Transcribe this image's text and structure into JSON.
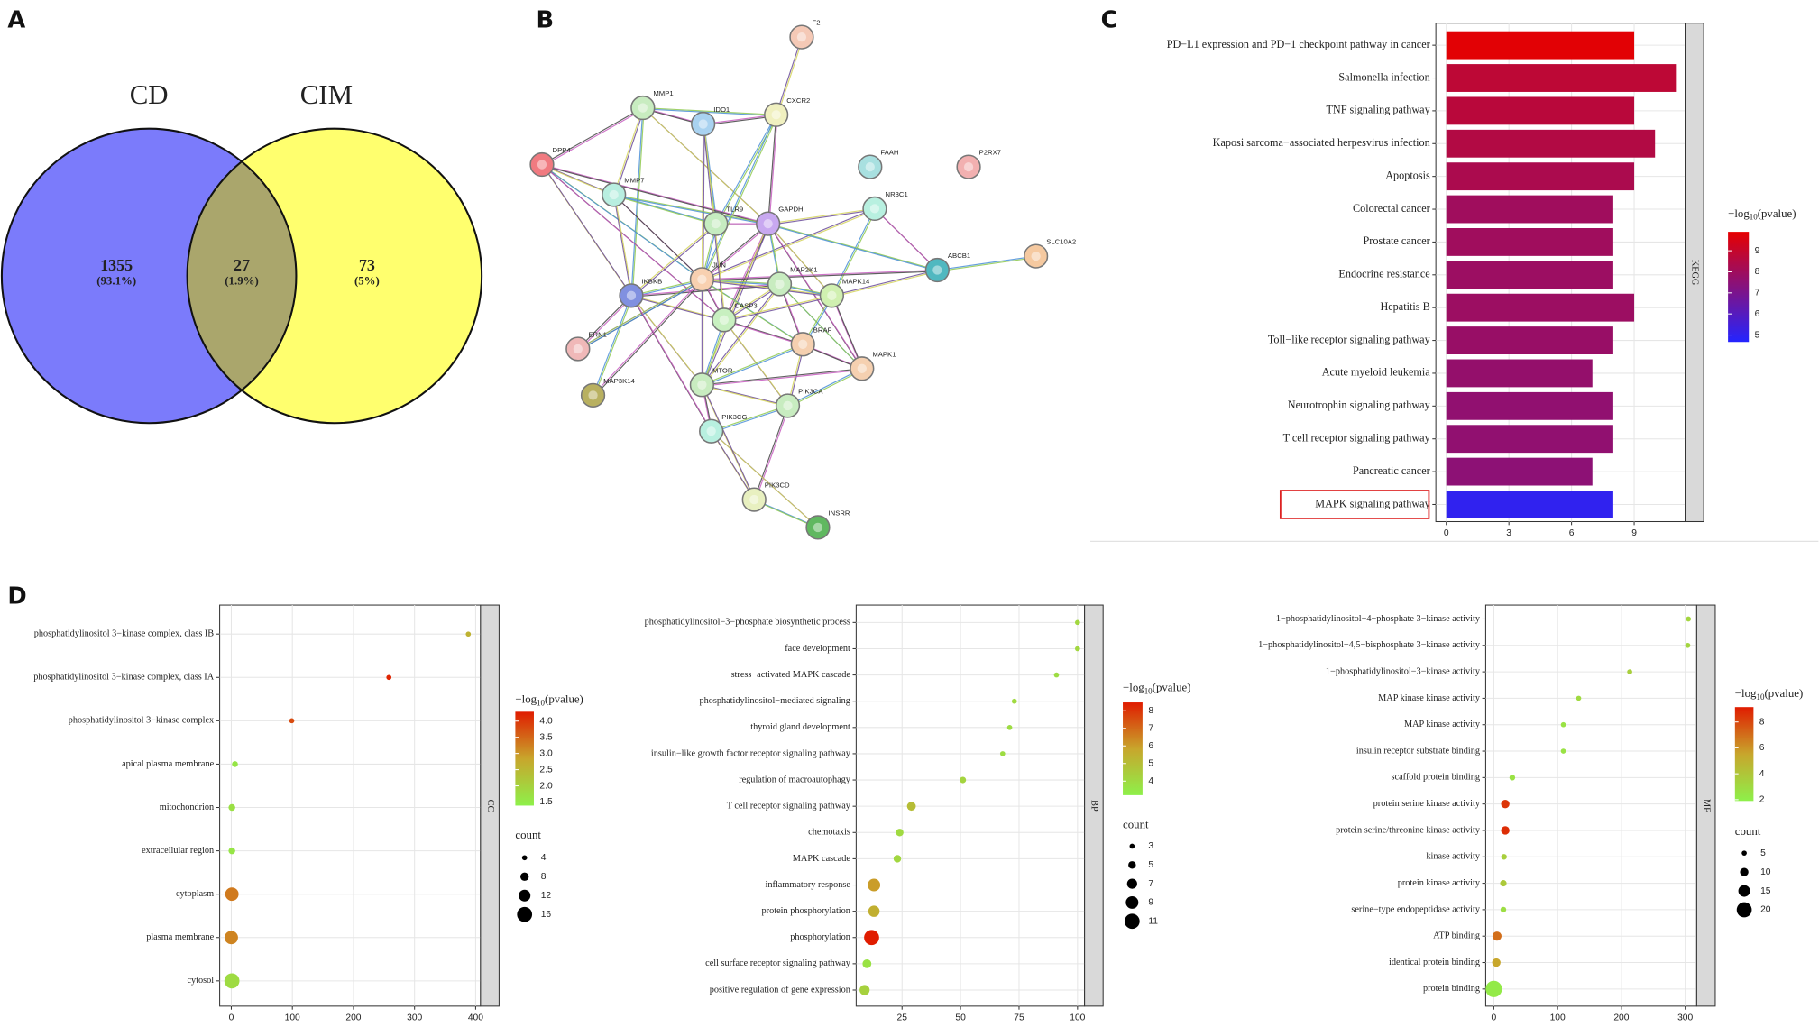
{
  "panel_labels": [
    "A",
    "B",
    "C",
    "D"
  ],
  "chart_data": [
    {
      "type": "venn",
      "sets": [
        {
          "name": "CD",
          "color": "#7b7bfb"
        },
        {
          "name": "CIM",
          "color": "#ffff6e"
        }
      ],
      "overlap_color": "#aaa66c",
      "values": [
        1355,
        27,
        73
      ],
      "percent_labels": [
        "(93.1%)",
        "(1.9%)",
        "(5%)"
      ]
    },
    {
      "type": "network",
      "nodes": [
        {
          "label": "F2",
          "color": "#f5c9b6"
        },
        {
          "label": "MMP1",
          "color": "#c8ecc0"
        },
        {
          "label": "IDO1",
          "color": "#a9d2f0"
        },
        {
          "label": "CXCR2",
          "color": "#f0f0c0"
        },
        {
          "label": "DPP4",
          "color": "#f07a80"
        },
        {
          "label": "FAAH",
          "color": "#a8e0e0"
        },
        {
          "label": "P2RX7",
          "color": "#f2b0b0"
        },
        {
          "label": "MMP7",
          "color": "#b8eee0"
        },
        {
          "label": "NR3C1",
          "color": "#b8f0e0"
        },
        {
          "label": "TLR9",
          "color": "#c6ecc0"
        },
        {
          "label": "GAPDH",
          "color": "#c8a8f0"
        },
        {
          "label": "ABCB1",
          "color": "#50b8c0"
        },
        {
          "label": "SLC10A2",
          "color": "#f5c9a0"
        },
        {
          "label": "IKBKB",
          "color": "#8090e0"
        },
        {
          "label": "JUN",
          "color": "#f8d0b0"
        },
        {
          "label": "MAP2K1",
          "color": "#c8ecc0"
        },
        {
          "label": "MAPK14",
          "color": "#d0f0b0"
        },
        {
          "label": "CASP3",
          "color": "#c8f0c0"
        },
        {
          "label": "BRAF",
          "color": "#f5d0b0"
        },
        {
          "label": "ERN1",
          "color": "#f0b8b8"
        },
        {
          "label": "MAPK1",
          "color": "#f5d0b0"
        },
        {
          "label": "MAP3K14",
          "color": "#b8b060"
        },
        {
          "label": "MTOR",
          "color": "#c8ecc0"
        },
        {
          "label": "PIK3CA",
          "color": "#c8ecc0"
        },
        {
          "label": "PIK3CG",
          "color": "#b8f0e0"
        },
        {
          "label": "PIK3CD",
          "color": "#e8f0c0"
        },
        {
          "label": "INSRR",
          "color": "#60b860"
        }
      ]
    },
    {
      "type": "bar",
      "orientation": "horizontal",
      "facet": "KEGG",
      "categories": [
        "PD−L1 expression and PD−1 checkpoint pathway in cancer",
        "Salmonella infection",
        "TNF signaling pathway",
        "Kaposi sarcoma−associated herpesvirus infection",
        "Apoptosis",
        "Colorectal cancer",
        "Prostate cancer",
        "Endocrine resistance",
        "Hepatitis B",
        "Toll−like receptor signaling pathway",
        "Acute myeloid leukemia",
        "Neurotrophin signaling pathway",
        "T cell receptor signaling pathway",
        "Pancreatic cancer",
        "MAPK signaling pathway"
      ],
      "values": [
        9,
        11,
        9,
        10,
        9,
        8,
        8,
        8,
        9,
        8,
        7,
        8,
        8,
        7,
        8
      ],
      "color_values": [
        9.8,
        8.8,
        8.7,
        8.5,
        8.3,
        8.0,
        8.0,
        7.9,
        7.9,
        7.8,
        7.7,
        7.6,
        7.6,
        7.5,
        5.0
      ],
      "color_scale": [
        "#2424ff",
        "#e60000"
      ],
      "highlight": 14,
      "xlim": [
        -0.5,
        11.44
      ],
      "xticks": [
        0,
        3,
        6,
        9
      ],
      "grid": true,
      "colorbar": {
        "title": [
          "−log",
          "10",
          "(pvalue)"
        ],
        "lim": [
          4.67,
          9.9
        ],
        "ticks": [
          5,
          6,
          7,
          8,
          9
        ]
      }
    },
    {
      "type": "dot",
      "facet": "CC",
      "categories": [
        "phosphatidylinositol 3−kinase complex, class IB",
        "phosphatidylinositol 3−kinase complex, class IA",
        "phosphatidylinositol 3−kinase complex",
        "apical plasma membrane",
        "mitochondrion",
        "extracellular region",
        "cytoplasm",
        "plasma membrane",
        "cytosol"
      ],
      "values": [
        388,
        258,
        99,
        6,
        1,
        1,
        1,
        0,
        1
      ],
      "sizes": [
        4,
        4,
        4,
        5,
        6,
        6,
        14,
        14,
        16
      ],
      "color_values": [
        2.6,
        4.2,
        3.8,
        1.6,
        1.7,
        1.6,
        3.3,
        3.2,
        1.8
      ],
      "color_scale": [
        "#8ef04a",
        "#c8a62c",
        "#e01c00"
      ],
      "xlim": [
        -19,
        408
      ],
      "xticks": [
        0,
        100,
        200,
        300,
        400
      ],
      "grid": true,
      "colorbar": {
        "title": [
          "−log",
          "10",
          "(pvalue)"
        ],
        "lim": [
          1.39,
          4.29
        ],
        "ticks": [
          1.5,
          {
            "value": 2,
            "label": "2.0"
          },
          2.5,
          {
            "value": 3,
            "label": "3.0"
          },
          3.5,
          {
            "value": 4,
            "label": "4.0"
          }
        ]
      },
      "size_legend": {
        "title": "count",
        "ticks": [
          4,
          8,
          12,
          16
        ]
      }
    },
    {
      "type": "dot",
      "facet": "BP",
      "categories": [
        "phosphatidylinositol−3−phosphate biosynthetic process",
        "face development",
        "stress−activated MAPK cascade",
        "phosphatidylinositol−mediated signaling",
        "thyroid gland development",
        "insulin−like growth factor receptor signaling pathway",
        "regulation of macroautophagy",
        "T cell receptor signaling pathway",
        "chemotaxis",
        "MAPK cascade",
        "inflammatory response",
        "protein phosphorylation",
        "phosphorylation",
        "cell surface receptor signaling pathway",
        "positive regulation of gene expression"
      ],
      "values": [
        100,
        100,
        91,
        73,
        71,
        68,
        51,
        29,
        24,
        23,
        13,
        13,
        12,
        10,
        9
      ],
      "sizes": [
        3,
        3,
        3,
        3,
        3,
        3,
        4,
        6,
        5,
        5,
        9,
        8,
        11,
        6,
        7
      ],
      "color_values": [
        4.1,
        4.1,
        3.9,
        4.0,
        3.9,
        3.9,
        4.2,
        5.0,
        4.0,
        4.1,
        6.0,
        5.5,
        8.5,
        3.7,
        4.3
      ],
      "color_scale": [
        "#8ef04a",
        "#c8a62c",
        "#e01c00"
      ],
      "xlim": [
        5.4,
        103
      ],
      "xticks": [
        25,
        50,
        75,
        100
      ],
      "grid": true,
      "colorbar": {
        "title": [
          "−log",
          "10",
          "(pvalue)"
        ],
        "lim": [
          3.2,
          8.47
        ],
        "ticks": [
          4,
          5,
          6,
          7,
          8
        ]
      },
      "size_legend": {
        "title": "count",
        "ticks": [
          3,
          5,
          7,
          9,
          11
        ]
      }
    },
    {
      "type": "dot",
      "facet": "MF",
      "categories": [
        "1−phosphatidylinositol−4−phosphate 3−kinase activity",
        "1−phosphatidylinositol−4,5−bisphosphate 3−kinase activity",
        "1−phosphatidylinositol−3−kinase activity",
        "MAP kinase kinase activity",
        "MAP kinase activity",
        "insulin receptor substrate binding",
        "scaffold protein binding",
        "protein serine kinase activity",
        "protein serine/threonine kinase activity",
        "kinase activity",
        "protein kinase activity",
        "serine−type endopeptidase activity",
        "ATP binding",
        "identical protein binding",
        "protein binding"
      ],
      "values": [
        305,
        304,
        213,
        133,
        109,
        109,
        29,
        18,
        18,
        16,
        15,
        15,
        5,
        4,
        0
      ],
      "sizes": [
        5,
        5,
        5,
        5,
        5,
        5,
        6,
        10,
        10,
        6,
        7,
        6,
        11,
        10,
        22
      ],
      "color_values": [
        3.2,
        3.2,
        3.5,
        3.0,
        2.6,
        2.6,
        2.6,
        8.5,
        8.7,
        3.5,
        3.8,
        2.8,
        7.0,
        5.5,
        2.2
      ],
      "color_scale": [
        "#8ef04a",
        "#c8a62c",
        "#e01c00"
      ],
      "xlim": [
        -12.7,
        318
      ],
      "xticks": [
        0,
        100,
        200,
        300
      ],
      "grid": true,
      "colorbar": {
        "title": [
          "−log",
          "10",
          "(pvalue)"
        ],
        "lim": [
          1.9,
          9.15
        ],
        "ticks": [
          2,
          4,
          6,
          8
        ]
      },
      "size_legend": {
        "title": "count",
        "ticks": [
          5,
          10,
          15,
          20
        ]
      }
    }
  ]
}
